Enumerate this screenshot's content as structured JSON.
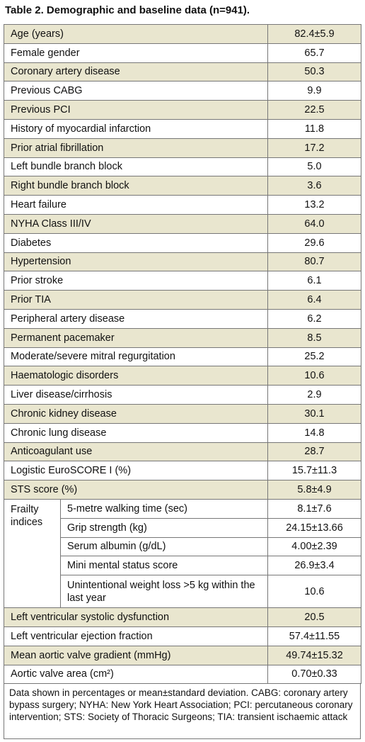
{
  "title": "Table 2. Demographic and baseline data (n=941).",
  "table": {
    "rows": [
      [
        "Age (years)",
        "82.4±5.9"
      ],
      [
        "Female gender",
        "65.7"
      ],
      [
        "Coronary artery disease",
        "50.3"
      ],
      [
        "Previous CABG",
        "9.9"
      ],
      [
        "Previous PCI",
        "22.5"
      ],
      [
        "History of myocardial infarction",
        "11.8"
      ],
      [
        "Prior atrial fibrillation",
        "17.2"
      ],
      [
        "Left bundle branch block",
        "5.0"
      ],
      [
        "Right bundle branch block",
        "3.6"
      ],
      [
        "Heart failure",
        "13.2"
      ],
      [
        "NYHA Class III/IV",
        "64.0"
      ],
      [
        "Diabetes",
        "29.6"
      ],
      [
        "Hypertension",
        "80.7"
      ],
      [
        "Prior stroke",
        "6.1"
      ],
      [
        "Prior TIA",
        "6.4"
      ],
      [
        "Peripheral artery disease",
        "6.2"
      ],
      [
        "Permanent pacemaker",
        "8.5"
      ],
      [
        "Moderate/severe mitral regurgitation",
        "25.2"
      ],
      [
        "Haematologic disorders",
        "10.6"
      ],
      [
        "Liver disease/cirrhosis",
        "2.9"
      ],
      [
        "Chronic kidney disease",
        "30.1"
      ],
      [
        "Chronic lung disease",
        "14.8"
      ],
      [
        "Anticoagulant use",
        "28.7"
      ],
      [
        "Logistic EuroSCORE I (%)",
        "15.7±11.3"
      ],
      [
        "STS score (%)",
        "5.8±4.9"
      ]
    ],
    "frailty": {
      "label": "Frailty indices",
      "rows": [
        [
          "5-metre walking time (sec)",
          "8.1±7.6"
        ],
        [
          "Grip strength (kg)",
          "24.15±13.66"
        ],
        [
          "Serum albumin (g/dL)",
          "4.00±2.39"
        ],
        [
          "Mini mental status score",
          "26.9±3.4"
        ],
        [
          "Unintentional weight loss >5 kg within the last year",
          "10.6"
        ]
      ]
    },
    "rows_after": [
      [
        "Left ventricular systolic dysfunction",
        "20.5"
      ],
      [
        "Left ventricular ejection fraction",
        "57.4±11.55"
      ],
      [
        "Mean aortic valve gradient (mmHg)",
        "49.74±15.32"
      ],
      [
        "Aortic valve area (cm²)",
        "0.70±0.33"
      ]
    ]
  },
  "footnote": "Data shown in percentages or mean±standard deviation. CABG: coronary artery bypass surgery; NYHA: New York Heart Association; PCI: percutaneous coronary intervention; STS: Society of Thoracic Surgeons; TIA: transient ischaemic attack"
}
